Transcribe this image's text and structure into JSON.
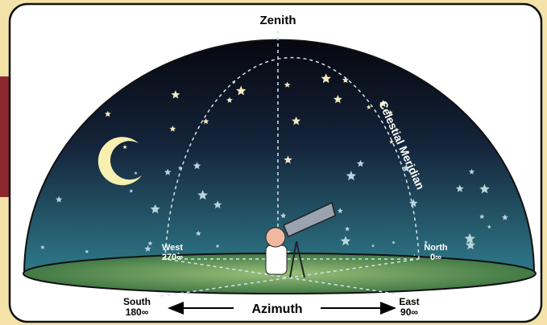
{
  "title": "Zenith",
  "meridian": "Celestial Meridian",
  "points": [
    {
      "name": "West",
      "degrees": "270∞"
    },
    {
      "name": "North",
      "degrees": "0∞"
    },
    {
      "name": "South",
      "degrees": "180∞"
    },
    {
      "name": "East",
      "degrees": "90∞"
    }
  ],
  "azimuth": "Azimuth"
}
